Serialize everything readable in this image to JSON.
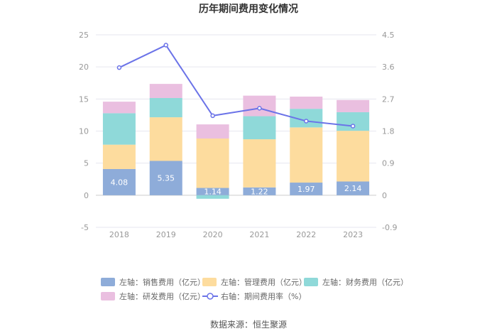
{
  "chart_data": {
    "type": "bar",
    "title": "历年期间费用变化情况",
    "categories": [
      "2018",
      "2019",
      "2020",
      "2021",
      "2022",
      "2023"
    ],
    "series": [
      {
        "name": "左轴：销售费用（亿元）",
        "axis": "left",
        "type": "stacked-bar",
        "color": "#8eacd9",
        "values": [
          4.08,
          5.35,
          1.14,
          1.22,
          1.97,
          2.14
        ],
        "labels": [
          "4.08",
          "5.35",
          "1.14",
          "1.22",
          "1.97",
          "2.14"
        ]
      },
      {
        "name": "左轴：管理费用（亿元）",
        "axis": "left",
        "type": "stacked-bar",
        "color": "#fddc9e",
        "values": [
          3.8,
          6.8,
          7.7,
          7.5,
          8.6,
          7.9
        ]
      },
      {
        "name": "左轴：财务费用（亿元）",
        "axis": "left",
        "type": "stacked-bar",
        "color": "#8fd9d9",
        "values": [
          4.9,
          3.0,
          -0.55,
          3.6,
          2.9,
          2.9
        ]
      },
      {
        "name": "左轴：研发费用（亿元）",
        "axis": "left",
        "type": "stacked-bar",
        "color": "#eabfe0",
        "values": [
          1.8,
          2.2,
          2.2,
          3.2,
          1.9,
          1.9
        ]
      },
      {
        "name": "右轴：期间费用率（%）",
        "axis": "right",
        "type": "line",
        "color": "#6b73e8",
        "values": [
          3.58,
          4.21,
          2.23,
          2.44,
          2.08,
          1.94
        ]
      }
    ],
    "left_axis": {
      "min": -5,
      "max": 25,
      "ticks": [
        "-5",
        "0",
        "5",
        "10",
        "15",
        "20",
        "25"
      ]
    },
    "right_axis": {
      "min": -0.9,
      "max": 4.5,
      "ticks": [
        "-0.9",
        "0",
        "0.9",
        "1.8",
        "2.7",
        "3.6",
        "4.5"
      ]
    },
    "legend_position": "bottom",
    "source": "数据来源：恒生聚源"
  }
}
